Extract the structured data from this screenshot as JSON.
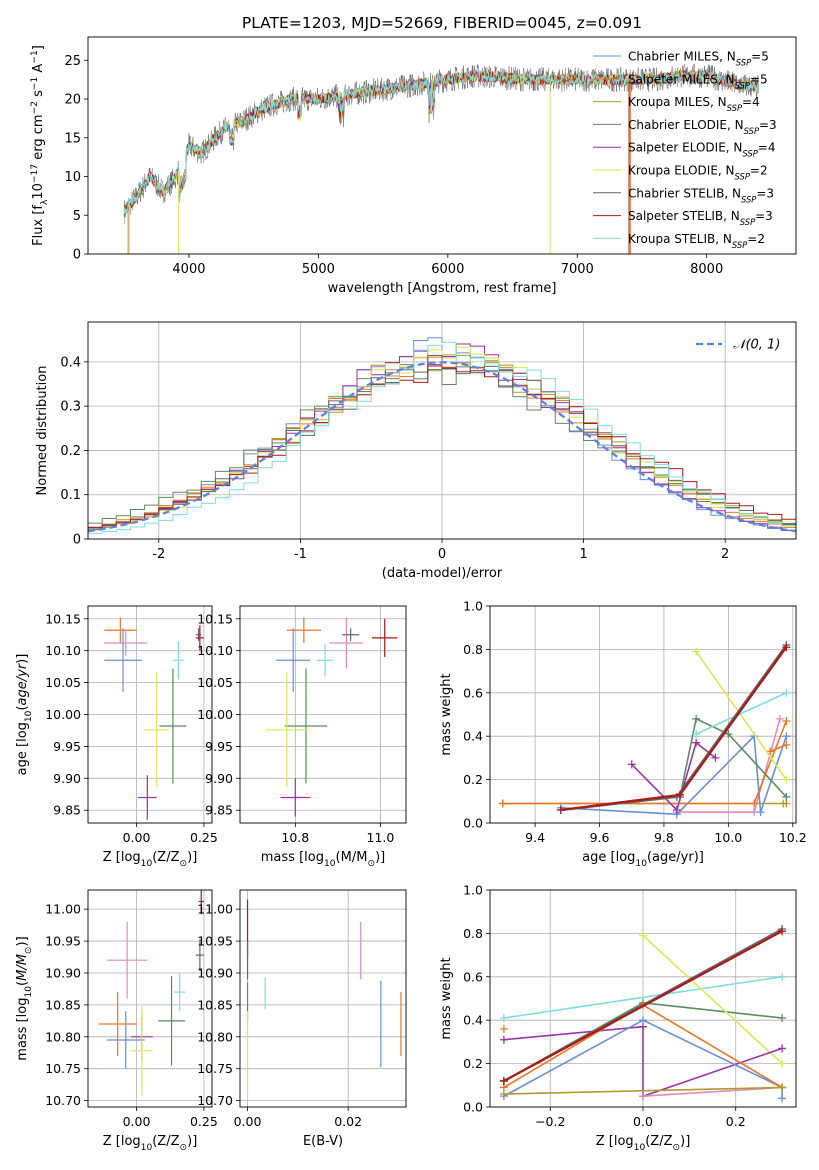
{
  "title": "PLATE=1203, MJD=52669, FIBERID=0045, z=0.091",
  "colors": {
    "cm": "#6a8fd6",
    "sm": "#e8772a",
    "km": "#b39a2c",
    "ce": "#5e8a60",
    "se": "#9b33a8",
    "ke": "#d8e85a",
    "cs": "#666666",
    "ss": "#aa1a1a",
    "ks": "#7fdcdc",
    "pink": "#e28ab8",
    "grid": "#b0b0b0"
  },
  "chart_data": [
    {
      "id": "spectrum",
      "type": "line",
      "xlabel": "wavelength [Angstrom, rest frame]",
      "ylabel_parts": [
        "Flux [f",
        "λ",
        "10",
        "−17",
        " erg cm",
        "−2",
        " s",
        "−1",
        " A",
        "−1",
        "]"
      ],
      "xlim": [
        3220,
        8690
      ],
      "ylim": [
        0,
        28
      ],
      "xticks": [
        4000,
        5000,
        6000,
        7000,
        8000
      ],
      "yticks": [
        0,
        5,
        10,
        15,
        20,
        25
      ],
      "grid": false,
      "legend_position": "upper right",
      "continuum": {
        "x": [
          3500,
          3600,
          3700,
          3800,
          3900,
          4000,
          4100,
          4200,
          4300,
          4400,
          4500,
          4600,
          4800,
          5000,
          5200,
          5400,
          5600,
          5800,
          6000,
          6200,
          6400,
          6600,
          6800,
          7000,
          7200,
          7400,
          7600,
          7800,
          8000,
          8200,
          8400
        ],
        "y": [
          5.5,
          7.5,
          10,
          8,
          10,
          14,
          13,
          15,
          16.5,
          17,
          18,
          19,
          20,
          20,
          20.5,
          21,
          21.5,
          22,
          22.5,
          23,
          22.8,
          22.5,
          22.5,
          22.5,
          22.5,
          22.5,
          22.5,
          23,
          23,
          22,
          21.5
        ]
      },
      "series": [
        {
          "name": "Chabrier MILES",
          "nssp": 5,
          "color_key": "cm"
        },
        {
          "name": "Salpeter MILES",
          "nssp": 5,
          "color_key": "sm"
        },
        {
          "name": "Kroupa MILES",
          "nssp": 4,
          "color_key": "km"
        },
        {
          "name": "Chabrier ELODIE",
          "nssp": 3,
          "color_key": "ce"
        },
        {
          "name": "Salpeter ELODIE",
          "nssp": 4,
          "color_key": "se"
        },
        {
          "name": "Kroupa ELODIE",
          "nssp": 2,
          "color_key": "ke"
        },
        {
          "name": "Chabrier STELIB",
          "nssp": 3,
          "color_key": "cs"
        },
        {
          "name": "Salpeter STELIB",
          "nssp": 3,
          "color_key": "ss"
        },
        {
          "name": "Kroupa STELIB",
          "nssp": 2,
          "color_key": "ks"
        }
      ]
    },
    {
      "id": "residuals",
      "type": "histogram",
      "xlabel": "(data-model)/error",
      "ylabel": "Normed distribution",
      "xlim": [
        -2.5,
        2.5
      ],
      "ylim": [
        0,
        0.49
      ],
      "xticks": [
        -2,
        -1,
        0,
        1,
        2
      ],
      "yticks": [
        0.0,
        0.1,
        0.2,
        0.3,
        0.4
      ],
      "grid": true,
      "legend_position": "upper right",
      "gaussian_legend": "𝒩(0, 1)",
      "gaussian_color": "#5b86d8",
      "bin_width": 0.1,
      "series_color_keys": [
        "cm",
        "sm",
        "km",
        "ce",
        "se",
        "ke",
        "cs",
        "ss",
        "ks"
      ]
    },
    {
      "id": "age_vs_Z",
      "type": "errorbar",
      "xlabel_parts": [
        "Z [log",
        "10",
        "(Z/Z",
        "⊙",
        ")]"
      ],
      "ylabel_parts": [
        "age  [log",
        "10",
        "(age/yr)]"
      ],
      "xlim": [
        -0.18,
        0.28
      ],
      "ylim": [
        9.83,
        10.17
      ],
      "xticks": [
        -0.2,
        0.0,
        0.25
      ],
      "ytick_labels": [
        "9.85",
        "9.90",
        "9.95",
        "10.00",
        "10.05",
        "10.10",
        "10.15"
      ],
      "yticks": [
        9.85,
        9.9,
        9.95,
        10.0,
        10.05,
        10.1,
        10.15
      ],
      "xtick_labels": [
        "",
        "0.00",
        "0.25"
      ],
      "grid": true,
      "points": [
        {
          "color_key": "sm",
          "x": -0.06,
          "xe": 0.06,
          "y": 10.132,
          "ye": 0.02
        },
        {
          "color_key": "pink",
          "x": -0.04,
          "xe": 0.08,
          "y": 10.112,
          "ye": 0.02
        },
        {
          "color_key": "cm",
          "x": -0.05,
          "xe": 0.07,
          "y": 10.085,
          "ye": 0.05
        },
        {
          "color_key": "ks",
          "x": 0.155,
          "xe": 0.02,
          "y": 10.085,
          "ye": 0.03
        },
        {
          "color_key": "ce",
          "x": 0.135,
          "xe": 0.05,
          "y": 9.982,
          "ye": 0.09
        },
        {
          "color_key": "ke",
          "x": 0.075,
          "xe": 0.045,
          "y": 9.976,
          "ye": 0.09
        },
        {
          "color_key": "se",
          "x": 0.04,
          "xe": 0.035,
          "y": 9.87,
          "ye": 0.035
        },
        {
          "color_key": "cs",
          "x": 0.23,
          "xe": 0.01,
          "y": 10.125,
          "ye": 0.01
        },
        {
          "color_key": "ss",
          "x": 0.235,
          "xe": 0.015,
          "y": 10.12,
          "ye": 0.02
        }
      ]
    },
    {
      "id": "age_vs_mass",
      "type": "errorbar",
      "xlabel_parts": [
        "mass [log",
        "10",
        "(M/M",
        "⊙",
        ")]"
      ],
      "xlim": [
        10.67,
        11.06
      ],
      "ylim": [
        9.83,
        10.17
      ],
      "xticks": [
        10.8,
        11.0
      ],
      "xtick_labels": [
        "10.8",
        "11.0"
      ],
      "yticks": [
        9.85,
        9.9,
        9.95,
        10.0,
        10.05,
        10.1,
        10.15
      ],
      "ytick_labels": [
        "9.85",
        "9.90",
        "9.95",
        "10.00",
        "10.05",
        "10.10",
        "10.15"
      ],
      "grid": true,
      "points": [
        {
          "color_key": "sm",
          "x": 10.82,
          "xe": 0.04,
          "y": 10.132,
          "ye": 0.02
        },
        {
          "color_key": "pink",
          "x": 10.92,
          "xe": 0.04,
          "y": 10.112,
          "ye": 0.04
        },
        {
          "color_key": "cm",
          "x": 10.795,
          "xe": 0.04,
          "y": 10.085,
          "ye": 0.05
        },
        {
          "color_key": "ks",
          "x": 10.87,
          "xe": 0.02,
          "y": 10.085,
          "ye": 0.025
        },
        {
          "color_key": "ce",
          "x": 10.825,
          "xe": 0.05,
          "y": 9.982,
          "ye": 0.09
        },
        {
          "color_key": "ke",
          "x": 10.78,
          "xe": 0.05,
          "y": 9.976,
          "ye": 0.09
        },
        {
          "color_key": "se",
          "x": 10.8,
          "xe": 0.035,
          "y": 9.87,
          "ye": 0.03
        },
        {
          "color_key": "cs",
          "x": 10.93,
          "xe": 0.02,
          "y": 10.125,
          "ye": 0.01
        },
        {
          "color_key": "ss",
          "x": 11.01,
          "xe": 0.03,
          "y": 10.12,
          "ye": 0.03
        }
      ]
    },
    {
      "id": "weight_vs_age",
      "type": "line",
      "xlabel_parts": [
        "age  [log",
        "10",
        "(age/yr)]"
      ],
      "ylabel": "mass weight",
      "xlim": [
        9.26,
        10.21
      ],
      "ylim": [
        0,
        1.0
      ],
      "xticks": [
        9.4,
        9.6,
        9.8,
        10.0,
        10.2
      ],
      "xtick_labels": [
        "9.4",
        "9.6",
        "9.8",
        "10.0",
        "10.2"
      ],
      "yticks": [
        0,
        0.2,
        0.4,
        0.6,
        0.8,
        1.0
      ],
      "ytick_labels": [
        "0.0",
        "0.2",
        "0.4",
        "0.6",
        "0.8",
        "1.0"
      ],
      "grid": true,
      "series": [
        {
          "color_key": "km",
          "x": [
            9.3,
            10.17,
            10.18
          ],
          "y": [
            0.09,
            0.09,
            0.09
          ]
        },
        {
          "color_key": "pink",
          "x": [
            9.84,
            10.08,
            10.16
          ],
          "y": [
            0.05,
            0.05,
            0.48
          ]
        },
        {
          "color_key": "cm",
          "x": [
            9.48,
            9.84,
            10.08,
            10.1,
            10.18
          ],
          "y": [
            0.07,
            0.04,
            0.4,
            0.05,
            0.4
          ]
        },
        {
          "color_key": "sm",
          "x": [
            9.3,
            10.08,
            10.18
          ],
          "y": [
            0.09,
            0.09,
            0.47
          ]
        },
        {
          "color_key": "sm",
          "x": [
            10.13,
            10.18
          ],
          "y": [
            0.33,
            0.36
          ]
        },
        {
          "color_key": "ce",
          "x": [
            9.85,
            9.9,
            10.0,
            10.18
          ],
          "y": [
            0.12,
            0.48,
            0.41,
            0.12
          ]
        },
        {
          "color_key": "se",
          "x": [
            9.7,
            9.84,
            9.9,
            9.96
          ],
          "y": [
            0.27,
            0.06,
            0.37,
            0.3
          ]
        },
        {
          "color_key": "ke",
          "x": [
            9.9,
            10.18
          ],
          "y": [
            0.79,
            0.2
          ]
        },
        {
          "color_key": "ks",
          "x": [
            9.9,
            10.18
          ],
          "y": [
            0.41,
            0.6
          ]
        },
        {
          "color_key": "cs",
          "x": [
            9.48,
            9.84,
            10.18
          ],
          "y": [
            0.06,
            0.12,
            0.82
          ]
        },
        {
          "color_key": "ss",
          "x": [
            9.48,
            9.85,
            10.18
          ],
          "y": [
            0.06,
            0.13,
            0.81
          ]
        }
      ]
    },
    {
      "id": "mass_vs_Z",
      "type": "errorbar",
      "xlabel_parts": [
        "Z [log",
        "10",
        "(Z/Z",
        "⊙",
        ")]"
      ],
      "ylabel_parts": [
        "mass [log",
        "10",
        "(M/M",
        "⊙",
        ")]"
      ],
      "xlim": [
        -0.18,
        0.28
      ],
      "ylim": [
        10.69,
        11.03
      ],
      "xticks": [
        -0.2,
        0.0,
        0.25
      ],
      "xtick_labels": [
        "",
        "0.00",
        "0.25"
      ],
      "yticks": [
        10.7,
        10.75,
        10.8,
        10.85,
        10.9,
        10.95,
        11.0
      ],
      "ytick_labels": [
        "10.70",
        "10.75",
        "10.80",
        "10.85",
        "10.90",
        "10.95",
        "11.00"
      ],
      "grid": true,
      "points": [
        {
          "color_key": "pink",
          "x": -0.035,
          "xe": 0.075,
          "y": 10.92,
          "ye": 0.06
        },
        {
          "color_key": "sm",
          "x": -0.07,
          "xe": 0.07,
          "y": 10.82,
          "ye": 0.05
        },
        {
          "color_key": "cm",
          "x": -0.04,
          "xe": 0.07,
          "y": 10.795,
          "ye": 0.045
        },
        {
          "color_key": "se",
          "x": 0.02,
          "xe": 0.04,
          "y": 10.8,
          "ye": 0.035
        },
        {
          "color_key": "ke",
          "x": 0.02,
          "xe": 0.04,
          "y": 10.778,
          "ye": 0.07
        },
        {
          "color_key": "ks",
          "x": 0.16,
          "xe": 0.02,
          "y": 10.87,
          "ye": 0.03
        },
        {
          "color_key": "ce",
          "x": 0.13,
          "xe": 0.05,
          "y": 10.825,
          "ye": 0.07
        },
        {
          "color_key": "cs",
          "x": 0.235,
          "xe": 0.015,
          "y": 10.928,
          "ye": 0.025
        },
        {
          "color_key": "ss",
          "x": 0.24,
          "xe": 0.01,
          "y": 11.012,
          "ye": 0.02
        }
      ]
    },
    {
      "id": "mass_vs_ebv",
      "type": "errorbar",
      "xlabel": "E(B-V)",
      "xlim": [
        -0.0015,
        0.0315
      ],
      "ylim": [
        10.69,
        11.03
      ],
      "xticks": [
        0.0,
        0.02
      ],
      "xtick_labels": [
        "0.00",
        "0.02"
      ],
      "yticks": [
        10.7,
        10.75,
        10.8,
        10.85,
        10.9,
        10.95,
        11.0
      ],
      "ytick_labels": [
        "10.70",
        "10.75",
        "10.80",
        "10.85",
        "10.90",
        "10.95",
        "11.00"
      ],
      "grid": true,
      "points": [
        {
          "color_key": "ss",
          "x": 0.0,
          "xe": 0.0,
          "y": 10.97,
          "ye": 0.045
        },
        {
          "color_key": "ce",
          "x": 0.0,
          "xe": 0.0,
          "y": 10.855,
          "ye": 0.03
        },
        {
          "color_key": "ke",
          "x": 0.0,
          "xe": 0.0,
          "y": 10.77,
          "ye": 0.07
        },
        {
          "color_key": "cs",
          "x": 0.0,
          "xe": 0.0,
          "y": 10.92,
          "ye": 0.03
        },
        {
          "color_key": "ks",
          "x": 0.0035,
          "xe": 0.0,
          "y": 10.868,
          "ye": 0.025
        },
        {
          "color_key": "pink",
          "x": 0.0225,
          "xe": 0.0,
          "y": 10.935,
          "ye": 0.045
        },
        {
          "color_key": "cm",
          "x": 0.0265,
          "xe": 0.0,
          "y": 10.82,
          "ye": 0.068
        },
        {
          "color_key": "sm",
          "x": 0.0305,
          "xe": 0.0,
          "y": 10.82,
          "ye": 0.05
        }
      ]
    },
    {
      "id": "weight_vs_Z",
      "type": "line",
      "xlabel_parts": [
        "Z [log",
        "10",
        "(Z/Z",
        "⊙",
        ")]"
      ],
      "ylabel": "mass weight",
      "xlim": [
        -0.33,
        0.33
      ],
      "ylim": [
        0,
        1.0
      ],
      "xticks": [
        -0.2,
        0.0,
        0.2
      ],
      "xtick_labels": [
        "−0.2",
        "0.0",
        "0.2"
      ],
      "yticks": [
        0,
        0.2,
        0.4,
        0.6,
        0.8,
        1.0
      ],
      "ytick_labels": [
        "0.0",
        "0.2",
        "0.4",
        "0.6",
        "0.8",
        "1.0"
      ],
      "grid": true,
      "series": [
        {
          "color_key": "ks",
          "x": [
            -0.3,
            0.3
          ],
          "y": [
            0.41,
            0.6
          ]
        },
        {
          "color_key": "ce",
          "x": [
            -0.3,
            0.0,
            0.3
          ],
          "y": [
            0.12,
            0.48,
            0.41
          ]
        },
        {
          "color_key": "ke",
          "x": [
            0.0,
            0.3
          ],
          "y": [
            0.79,
            0.2
          ]
        },
        {
          "color_key": "se",
          "x": [
            -0.3,
            0.0,
            0.0,
            0.3
          ],
          "y": [
            0.31,
            0.37,
            0.05,
            0.27
          ]
        },
        {
          "color_key": "pink",
          "x": [
            0.0,
            0.3
          ],
          "y": [
            0.05,
            0.09
          ]
        },
        {
          "color_key": "cm",
          "x": [
            -0.3,
            0.0,
            0.3,
            0.3
          ],
          "y": [
            0.05,
            0.4,
            0.09,
            0.04
          ]
        },
        {
          "color_key": "sm",
          "x": [
            -0.3,
            0.0,
            0.3
          ],
          "y": [
            0.09,
            0.47,
            0.09
          ]
        },
        {
          "color_key": "sm",
          "x": [
            -0.3
          ],
          "y": [
            0.36
          ]
        },
        {
          "color_key": "km",
          "x": [
            -0.3,
            0.3
          ],
          "y": [
            0.06,
            0.09
          ]
        },
        {
          "color_key": "cs",
          "x": [
            -0.3,
            0.3
          ],
          "y": [
            0.12,
            0.82
          ]
        },
        {
          "color_key": "ss",
          "x": [
            -0.3,
            0.3
          ],
          "y": [
            0.12,
            0.81
          ]
        }
      ]
    }
  ]
}
